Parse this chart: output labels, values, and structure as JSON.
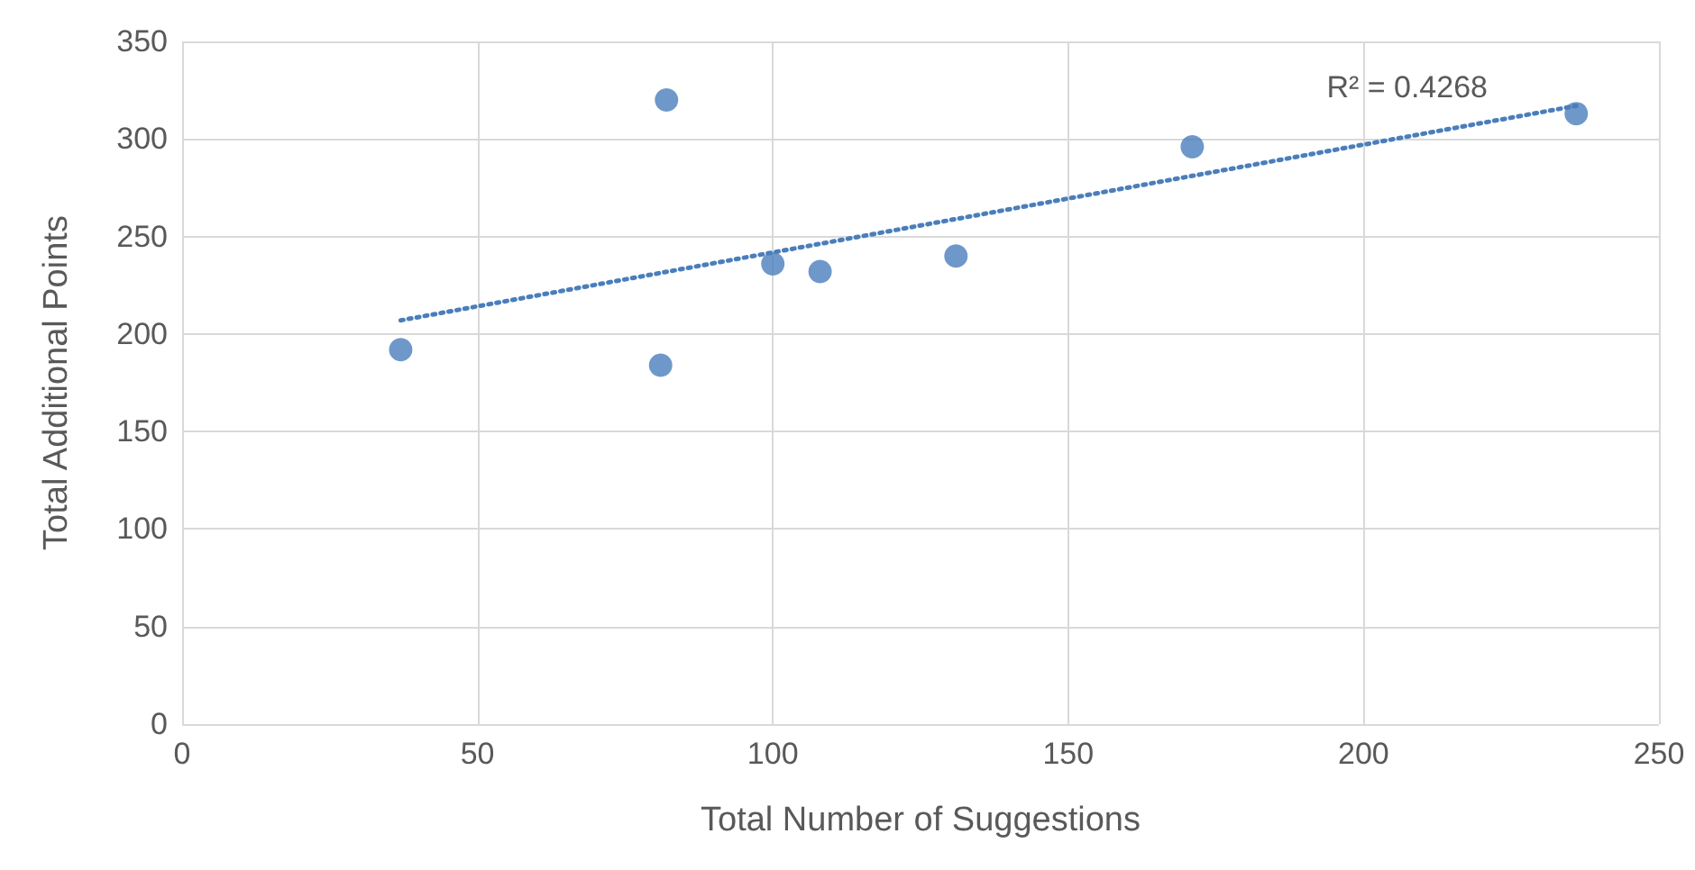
{
  "chart_data": {
    "type": "scatter",
    "xlabel": "Total Number of Suggestions",
    "ylabel": "Total Additional Points",
    "xlim": [
      0,
      250
    ],
    "xticks": [
      0,
      50,
      100,
      150,
      200,
      250
    ],
    "ylim": [
      0,
      350
    ],
    "yticks": [
      0,
      50,
      100,
      150,
      200,
      250,
      300,
      350
    ],
    "grid": true,
    "marker": "circle",
    "series": [
      {
        "color": "#4a7ebb",
        "x": [
          37,
          82,
          81,
          100,
          108,
          131,
          171,
          236
        ],
        "values": [
          192,
          320,
          184,
          236,
          232,
          240,
          296,
          313
        ]
      },
      {
        "type": "line",
        "color": "#4a7ebb",
        "line_style": "dotted",
        "marker": "none",
        "x": [
          37,
          236
        ],
        "values": [
          207,
          317
        ]
      }
    ],
    "annotations": [
      "R² = 0.4268"
    ]
  }
}
